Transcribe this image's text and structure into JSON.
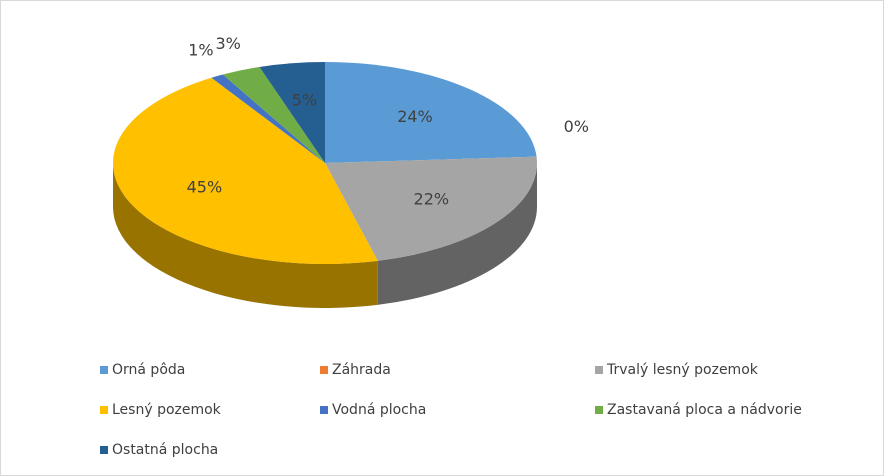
{
  "chart_data": {
    "type": "pie3d",
    "categories": [
      "Orná pôda",
      "Záhrada",
      "Trvalý lesný pozemok",
      "Lesný pozemok",
      "Vodná plocha",
      "Zastavaná ploca a nádvorie",
      "Ostatná plocha"
    ],
    "values": [
      24,
      0,
      22,
      45,
      1,
      3,
      5
    ],
    "value_labels": [
      "24%",
      "0%",
      "22%",
      "45%",
      "1%",
      "3%",
      "5%"
    ],
    "colors": [
      "#5b9bd5",
      "#ed7d31",
      "#a5a5a5",
      "#ffc000",
      "#4472c4",
      "#70ad47",
      "#255e91"
    ],
    "legend": "bottom"
  }
}
